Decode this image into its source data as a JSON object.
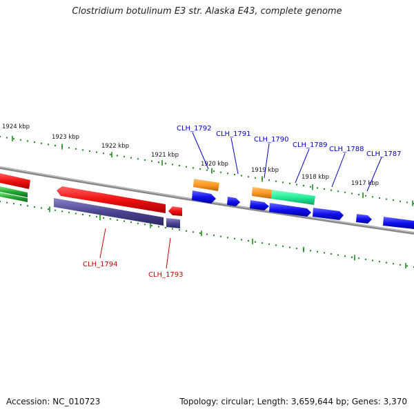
{
  "title": "Clostridium botulinum E3 str. Alaska E43, complete genome",
  "footer": {
    "accession": "Accession: NC_010723",
    "summary": "Topology: circular; Length: 3,659,644 bp; Genes: 3,370"
  },
  "colors": {
    "backbone": "#888888",
    "tick": "#1a8a1a",
    "top_label": "#0000cc",
    "bottom_label": "#cc0000",
    "red": "#ee1111",
    "green": "#22aa33",
    "slate": "#4a4590",
    "orange": "#ff9922",
    "blue": "#1111ee",
    "aqua": "#22ee99"
  },
  "kbp_labels": [
    "1924 kbp",
    "1923 kbp",
    "1922 kbp",
    "1921 kbp",
    "1920 kbp",
    "1919 kbp",
    "1918 kbp",
    "1917 kbp"
  ],
  "top_gene_labels": [
    "CLH_1792",
    "CLH_1791",
    "CLH_1790",
    "CLH_1789",
    "CLH_1788",
    "CLH_1787"
  ],
  "bottom_gene_labels": [
    "CLH_1794",
    "CLH_1793"
  ]
}
